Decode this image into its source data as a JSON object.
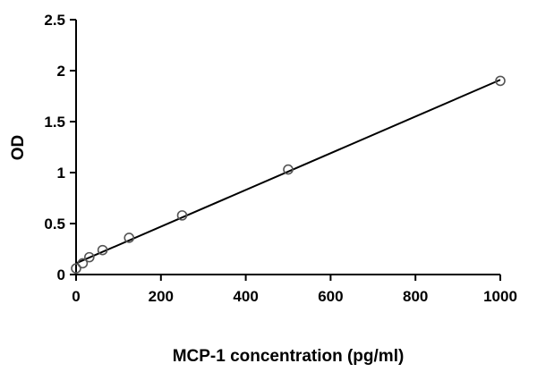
{
  "chart_data": {
    "type": "scatter",
    "title": "",
    "xlabel": "MCP-1 concentration (pg/ml)",
    "ylabel": "OD",
    "xlim": [
      0,
      1000
    ],
    "ylim": [
      0,
      2.5
    ],
    "xticks": [
      "0",
      "200",
      "400",
      "600",
      "800",
      "1000"
    ],
    "yticks": [
      "0",
      "0.5",
      "1",
      "1.5",
      "2",
      "2.5"
    ],
    "grid": false,
    "legend": "none",
    "points": {
      "x": [
        0,
        15.6,
        31.25,
        62.5,
        125,
        250,
        500,
        1000
      ],
      "y": [
        0.06,
        0.11,
        0.17,
        0.24,
        0.36,
        0.58,
        1.03,
        1.9
      ]
    },
    "trendline": {
      "type": "linear",
      "intercept": 0.11,
      "slope": 0.0018
    },
    "colors": {
      "axis": "#000000",
      "marker": "#555555",
      "line": "#000000"
    }
  }
}
